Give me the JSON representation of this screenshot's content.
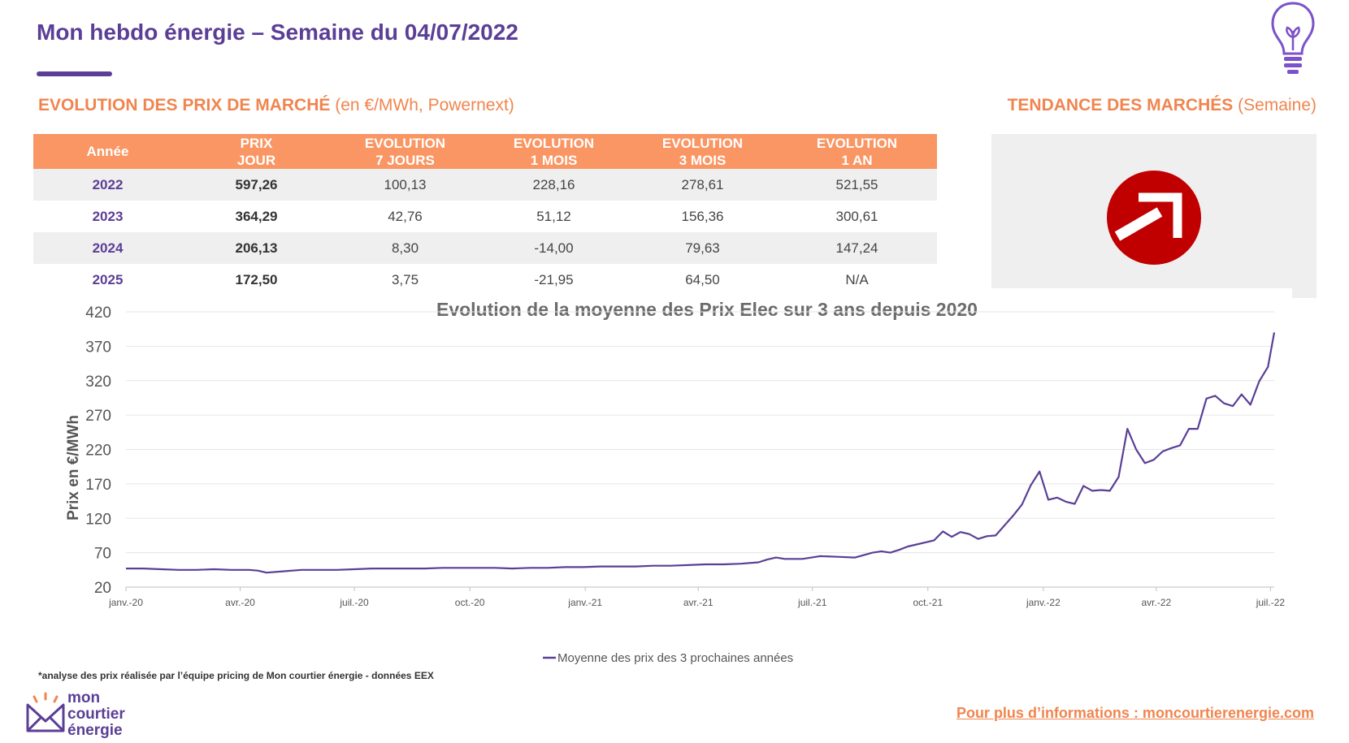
{
  "header": {
    "title": "Mon hebdo énergie – Semaine du 04/07/2022",
    "icon": "lightbulb-icon"
  },
  "prices_section": {
    "title": "EVOLUTION DES PRIX DE MARCHÉ",
    "subtitle": "(en €/MWh, Powernext)"
  },
  "trend_section": {
    "title": "TENDANCE DES MARCHÉS",
    "subtitle": "(Semaine)",
    "icon": "arrow-up-right-circle-icon",
    "color": "#c00000"
  },
  "table": {
    "headers": [
      [
        "Année"
      ],
      [
        "PRIX",
        "JOUR"
      ],
      [
        "EVOLUTION",
        "7 JOURS"
      ],
      [
        "EVOLUTION",
        "1 MOIS"
      ],
      [
        "EVOLUTION",
        "3 MOIS"
      ],
      [
        "EVOLUTION",
        "1 AN"
      ]
    ],
    "rows": [
      [
        "2022",
        "597,26",
        "100,13",
        "228,16",
        "278,61",
        "521,55"
      ],
      [
        "2023",
        "364,29",
        "42,76",
        "51,12",
        "156,36",
        "300,61"
      ],
      [
        "2024",
        "206,13",
        "8,30",
        "-14,00",
        "79,63",
        "147,24"
      ],
      [
        "2025",
        "172,50",
        "3,75",
        "-21,95",
        "64,50",
        "N/A"
      ]
    ]
  },
  "chart_data": {
    "type": "line",
    "title": "Evolution de la moyenne des Prix Elec sur 3 ans depuis 2020",
    "ylabel": "Prix en €/MWh",
    "xlabel": "",
    "ylim": [
      20,
      420
    ],
    "yticks": [
      20,
      70,
      120,
      170,
      220,
      270,
      320,
      370,
      420
    ],
    "xlim": [
      "2020-01-01",
      "2022-07-04"
    ],
    "xticks": [
      {
        "date": "2020-01-01",
        "label": "janv.-20"
      },
      {
        "date": "2020-04-01",
        "label": "avr.-20"
      },
      {
        "date": "2020-07-01",
        "label": "juil.-20"
      },
      {
        "date": "2020-10-01",
        "label": "oct.-20"
      },
      {
        "date": "2021-01-01",
        "label": "janv.-21"
      },
      {
        "date": "2021-04-01",
        "label": "avr.-21"
      },
      {
        "date": "2021-07-01",
        "label": "juil.-21"
      },
      {
        "date": "2021-10-01",
        "label": "oct.-21"
      },
      {
        "date": "2022-01-01",
        "label": "janv.-22"
      },
      {
        "date": "2022-04-01",
        "label": "avr.-22"
      },
      {
        "date": "2022-07-01",
        "label": "juil.-22"
      }
    ],
    "grid": true,
    "legend": "bottom",
    "color": "#5b3e96",
    "series": [
      {
        "name": "Moyenne des prix des 3 prochaines années",
        "points": [
          [
            "2020-01-01",
            47
          ],
          [
            "2020-01-15",
            47
          ],
          [
            "2020-01-29",
            46
          ],
          [
            "2020-02-12",
            45
          ],
          [
            "2020-02-26",
            45
          ],
          [
            "2020-03-11",
            46
          ],
          [
            "2020-03-25",
            45
          ],
          [
            "2020-04-08",
            45
          ],
          [
            "2020-04-15",
            44
          ],
          [
            "2020-04-22",
            41
          ],
          [
            "2020-05-06",
            43
          ],
          [
            "2020-05-20",
            45
          ],
          [
            "2020-06-03",
            45
          ],
          [
            "2020-06-17",
            45
          ],
          [
            "2020-07-01",
            46
          ],
          [
            "2020-07-15",
            47
          ],
          [
            "2020-07-29",
            47
          ],
          [
            "2020-08-12",
            47
          ],
          [
            "2020-08-26",
            47
          ],
          [
            "2020-09-09",
            48
          ],
          [
            "2020-09-23",
            48
          ],
          [
            "2020-10-07",
            48
          ],
          [
            "2020-10-21",
            48
          ],
          [
            "2020-11-04",
            47
          ],
          [
            "2020-11-18",
            48
          ],
          [
            "2020-12-02",
            48
          ],
          [
            "2020-12-16",
            49
          ],
          [
            "2020-12-30",
            49
          ],
          [
            "2021-01-13",
            50
          ],
          [
            "2021-01-27",
            50
          ],
          [
            "2021-02-10",
            50
          ],
          [
            "2021-02-24",
            51
          ],
          [
            "2021-03-10",
            51
          ],
          [
            "2021-03-24",
            52
          ],
          [
            "2021-04-07",
            53
          ],
          [
            "2021-04-21",
            53
          ],
          [
            "2021-05-05",
            54
          ],
          [
            "2021-05-19",
            56
          ],
          [
            "2021-05-26",
            60
          ],
          [
            "2021-06-02",
            63
          ],
          [
            "2021-06-09",
            61
          ],
          [
            "2021-06-23",
            61
          ],
          [
            "2021-07-07",
            65
          ],
          [
            "2021-07-21",
            64
          ],
          [
            "2021-08-04",
            63
          ],
          [
            "2021-08-18",
            70
          ],
          [
            "2021-08-25",
            72
          ],
          [
            "2021-09-01",
            70
          ],
          [
            "2021-09-08",
            74
          ],
          [
            "2021-09-15",
            79
          ],
          [
            "2021-09-22",
            82
          ],
          [
            "2021-10-06",
            88
          ],
          [
            "2021-10-13",
            101
          ],
          [
            "2021-10-20",
            93
          ],
          [
            "2021-10-27",
            100
          ],
          [
            "2021-11-03",
            97
          ],
          [
            "2021-11-10",
            90
          ],
          [
            "2021-11-17",
            94
          ],
          [
            "2021-11-24",
            95
          ],
          [
            "2021-12-08",
            124
          ],
          [
            "2021-12-15",
            140
          ],
          [
            "2021-12-22",
            168
          ],
          [
            "2021-12-29",
            188
          ],
          [
            "2022-01-05",
            147
          ],
          [
            "2022-01-12",
            150
          ],
          [
            "2022-01-19",
            144
          ],
          [
            "2022-01-26",
            141
          ],
          [
            "2022-02-02",
            167
          ],
          [
            "2022-02-09",
            160
          ],
          [
            "2022-02-16",
            161
          ],
          [
            "2022-02-23",
            160
          ],
          [
            "2022-03-02",
            180
          ],
          [
            "2022-03-09",
            250
          ],
          [
            "2022-03-16",
            220
          ],
          [
            "2022-03-23",
            200
          ],
          [
            "2022-03-30",
            205
          ],
          [
            "2022-04-06",
            217
          ],
          [
            "2022-04-13",
            222
          ],
          [
            "2022-04-20",
            226
          ],
          [
            "2022-04-27",
            250
          ],
          [
            "2022-05-04",
            250
          ],
          [
            "2022-05-11",
            294
          ],
          [
            "2022-05-18",
            298
          ],
          [
            "2022-05-25",
            287
          ],
          [
            "2022-06-01",
            283
          ],
          [
            "2022-06-08",
            300
          ],
          [
            "2022-06-15",
            285
          ],
          [
            "2022-06-22",
            319
          ],
          [
            "2022-06-29",
            340
          ],
          [
            "2022-07-04",
            390
          ]
        ]
      }
    ]
  },
  "footer": {
    "footnote": "*analyse des prix réalisée par l’équipe pricing de Mon courtier énergie - données EEX",
    "logo_lines": [
      "mon",
      "courtier",
      "énergie"
    ],
    "logo_icon": "mon-courtier-logo-icon",
    "more_info": "Pour plus d’informations : moncourtierenergie.com"
  }
}
